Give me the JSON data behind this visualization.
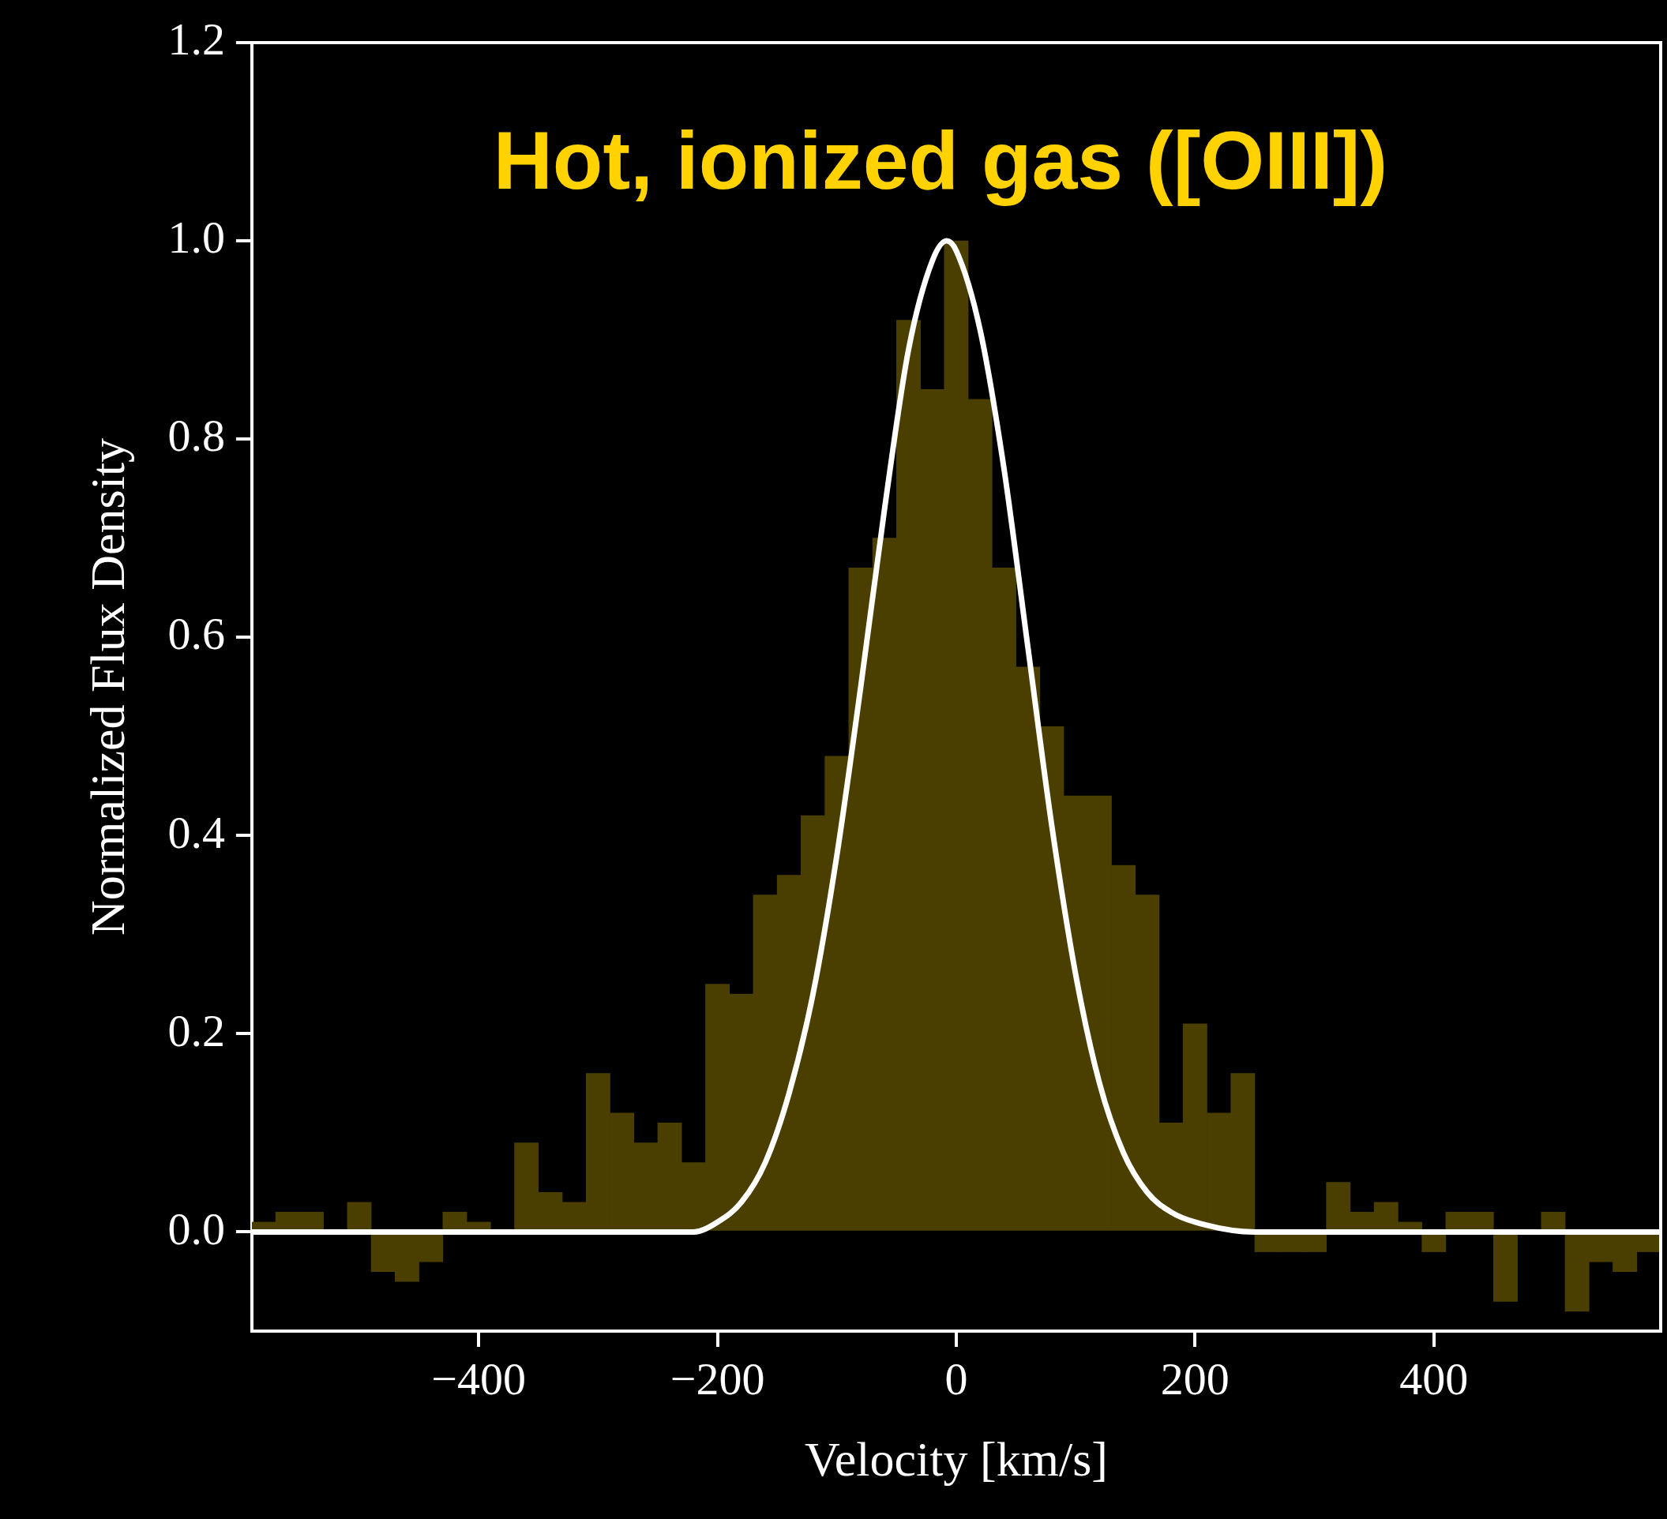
{
  "chart_data": {
    "type": "histogram",
    "title": "Hot, ionized gas ([OIII])",
    "xlabel": "Velocity [km/s]",
    "ylabel": "Normalized Flux Density",
    "xlim": [
      -590,
      590
    ],
    "ylim": [
      -0.1,
      1.2
    ],
    "xticks": [
      -400,
      -200,
      0,
      200,
      400
    ],
    "yticks": [
      {
        "value": 0,
        "label": "0.0"
      },
      {
        "value": 0.2,
        "label": "0.2"
      },
      {
        "value": 0.4,
        "label": "0.4"
      },
      {
        "value": 0.6,
        "label": "0.6"
      },
      {
        "value": 0.8,
        "label": "0.8"
      },
      {
        "value": 1,
        "label": "1.0"
      },
      {
        "value": 1.2,
        "label": "1.2"
      }
    ],
    "grid": false,
    "legend": false,
    "series": [
      {
        "color": "#4b3f00",
        "bins": [
          -590,
          -570,
          -550,
          -530,
          -510,
          -490,
          -470,
          -450,
          -430,
          -410,
          -390,
          -370,
          -350,
          -330,
          -310,
          -290,
          -270,
          -250,
          -230,
          -210,
          -190,
          -170,
          -150,
          -130,
          -110,
          -90,
          -70,
          -50,
          -30,
          -10,
          10,
          30,
          50,
          70,
          90,
          110,
          130,
          150,
          170,
          190,
          210,
          230,
          250,
          270,
          290,
          310,
          330,
          350,
          370,
          390,
          410,
          430,
          450,
          470,
          490,
          510,
          530,
          550,
          570,
          590
        ],
        "values": [
          0.01,
          0.02,
          0.02,
          0.0,
          0.03,
          -0.04,
          -0.05,
          -0.03,
          0.02,
          0.01,
          0.0,
          0.09,
          0.04,
          0.03,
          0.16,
          0.12,
          0.09,
          0.11,
          0.07,
          0.25,
          0.24,
          0.34,
          0.36,
          0.42,
          0.48,
          0.67,
          0.7,
          0.92,
          0.85,
          1.0,
          0.84,
          0.67,
          0.57,
          0.51,
          0.44,
          0.44,
          0.37,
          0.34,
          0.11,
          0.21,
          0.12,
          0.16,
          -0.02,
          -0.02,
          -0.02,
          0.05,
          0.02,
          0.03,
          0.01,
          -0.02,
          0.02,
          0.02,
          -0.07,
          0.0,
          0.02,
          -0.08,
          -0.03,
          -0.04,
          -0.02
        ]
      },
      {
        "type": "line",
        "color": "#ffffff",
        "x": [
          -590,
          -300,
          -250,
          -220,
          -200,
          -180,
          -160,
          -140,
          -120,
          -100,
          -80,
          -60,
          -40,
          -20,
          -8,
          0,
          20,
          40,
          60,
          80,
          100,
          120,
          140,
          160,
          180,
          200,
          250,
          300,
          590
        ],
        "values": [
          0,
          0,
          0,
          0,
          0.01,
          0.03,
          0.07,
          0.14,
          0.24,
          0.38,
          0.55,
          0.73,
          0.89,
          0.98,
          1.0,
          0.99,
          0.91,
          0.77,
          0.59,
          0.41,
          0.26,
          0.15,
          0.08,
          0.04,
          0.02,
          0.01,
          0,
          0,
          0
        ]
      }
    ]
  }
}
